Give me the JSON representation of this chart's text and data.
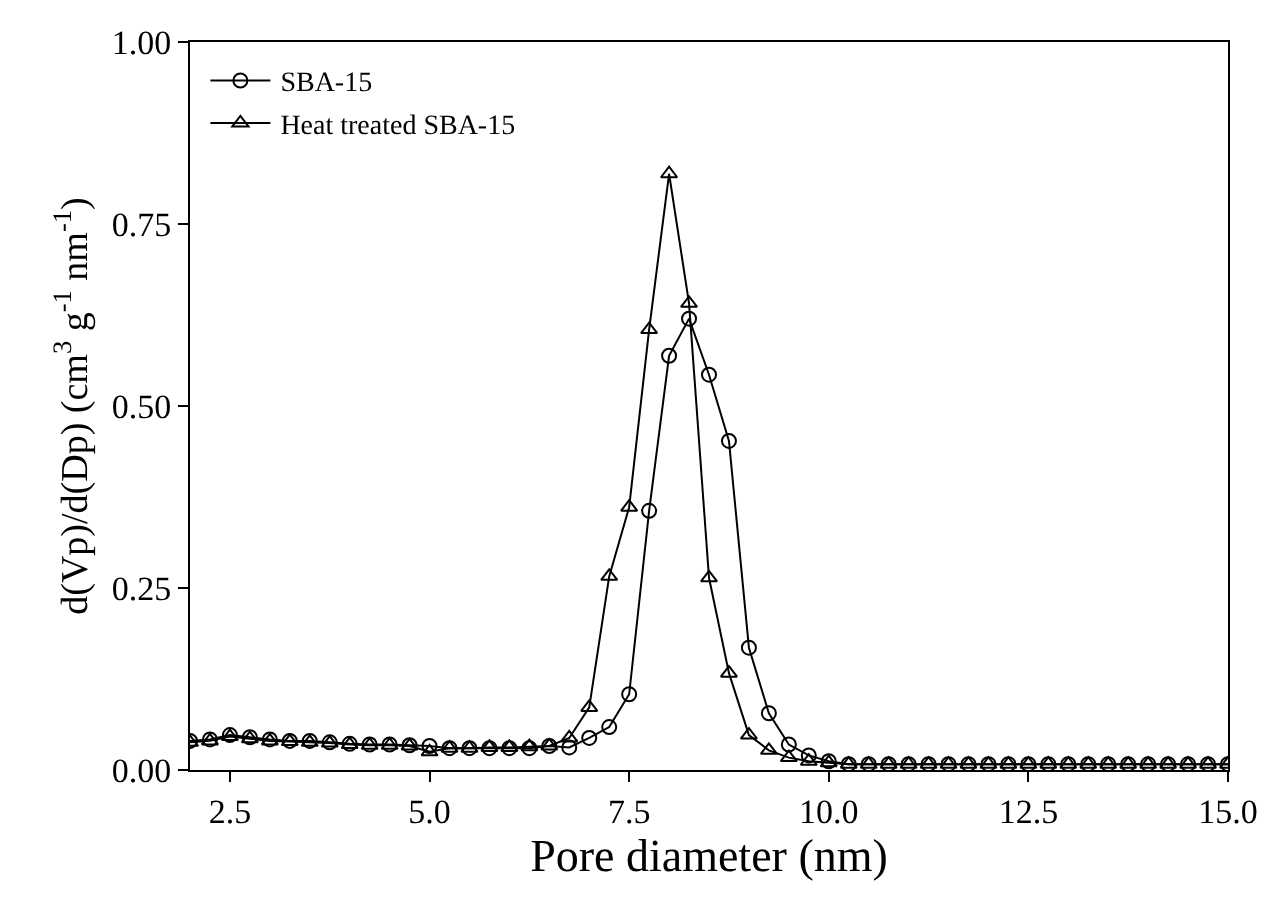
{
  "chart_data": {
    "type": "line",
    "xlabel": "Pore diameter (nm)",
    "ylabel": "d(Vp)/d(Dp) (cm$^{3}$ g$^{-1}$ nm$^{-1}$)",
    "x": [
      2.0,
      2.25,
      2.5,
      2.75,
      3.0,
      3.25,
      3.5,
      3.75,
      4.0,
      4.25,
      4.5,
      4.75,
      5.0,
      5.25,
      5.5,
      5.75,
      6.0,
      6.25,
      6.5,
      6.75,
      7.0,
      7.25,
      7.5,
      7.75,
      8.0,
      8.25,
      8.5,
      8.75,
      9.0,
      9.25,
      9.5,
      9.75,
      10.0,
      10.25,
      10.5,
      10.75,
      11.0,
      11.25,
      11.5,
      11.75,
      12.0,
      12.25,
      12.5,
      12.75,
      13.0,
      13.25,
      13.5,
      13.75,
      14.0,
      14.25,
      14.5,
      14.75,
      15.0
    ],
    "series": [
      {
        "name": "SBA-15",
        "color": "#000000",
        "marker": "circle",
        "values": [
          0.04,
          0.042,
          0.048,
          0.045,
          0.042,
          0.04,
          0.04,
          0.038,
          0.036,
          0.035,
          0.035,
          0.034,
          0.033,
          0.03,
          0.03,
          0.03,
          0.03,
          0.03,
          0.033,
          0.031,
          0.044,
          0.059,
          0.104,
          0.356,
          0.569,
          0.62,
          0.543,
          0.452,
          0.168,
          0.078,
          0.035,
          0.02,
          0.012,
          0.008,
          0.008,
          0.008,
          0.008,
          0.008,
          0.008,
          0.008,
          0.008,
          0.008,
          0.008,
          0.008,
          0.008,
          0.008,
          0.008,
          0.008,
          0.008,
          0.008,
          0.008,
          0.008,
          0.008
        ]
      },
      {
        "name": "Heat treated SBA-15",
        "color": "#000000",
        "marker": "triangle",
        "values": [
          0.038,
          0.04,
          0.046,
          0.043,
          0.04,
          0.039,
          0.038,
          0.037,
          0.035,
          0.034,
          0.034,
          0.033,
          0.025,
          0.03,
          0.03,
          0.031,
          0.031,
          0.032,
          0.033,
          0.044,
          0.086,
          0.266,
          0.361,
          0.605,
          0.819,
          0.641,
          0.264,
          0.133,
          0.048,
          0.027,
          0.017,
          0.012,
          0.01,
          0.008,
          0.008,
          0.008,
          0.008,
          0.008,
          0.008,
          0.008,
          0.008,
          0.008,
          0.008,
          0.008,
          0.008,
          0.008,
          0.008,
          0.008,
          0.008,
          0.008,
          0.008,
          0.008,
          0.008
        ]
      }
    ],
    "xlim": [
      2,
      15
    ],
    "xticks": [
      2.5,
      {
        "value": 5,
        "label": "5.0"
      },
      7.5,
      {
        "value": 10,
        "label": "10.0"
      },
      12.5,
      {
        "value": 15,
        "label": "15.0"
      }
    ],
    "ylim": [
      0,
      1
    ],
    "yticks": [
      {
        "value": 0,
        "label": "0.00"
      },
      0.25,
      {
        "value": 0.5,
        "label": "0.50"
      },
      0.75,
      {
        "value": 1,
        "label": "1.00"
      }
    ],
    "legend": "top left",
    "line_style": "solid"
  }
}
